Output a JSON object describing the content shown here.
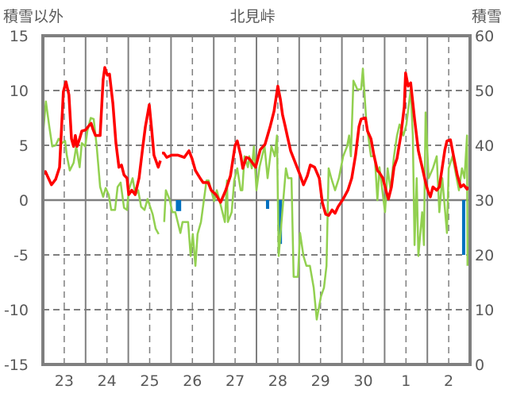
{
  "chart_data": {
    "type": "line",
    "title": "北見峠",
    "ylabel_left": "積雪以外",
    "ylabel_right": "積雪",
    "ylim_left": [
      -15,
      15
    ],
    "ylim_right": [
      0,
      60
    ],
    "yticks_left": [
      "15",
      "10",
      "5",
      "0",
      "-5",
      "-10",
      "-15"
    ],
    "yticks_right": [
      "60",
      "50",
      "40",
      "30",
      "20",
      "10",
      "0"
    ],
    "x_unit": "days from start of day 23",
    "xlim": [
      0,
      10
    ],
    "xtick_labels": [
      "23",
      "24",
      "25",
      "26",
      "27",
      "28",
      "29",
      "30",
      "1",
      "2"
    ],
    "grid": true,
    "colors": {
      "red": "#ff0000",
      "green": "#92d050",
      "blue": "#0070c0",
      "purple": "#7030a0",
      "frame": "#7f7f7f"
    },
    "series": [
      {
        "id": "red",
        "axis": "left",
        "color": "#ff0000",
        "points": [
          [
            0,
            2.3
          ],
          [
            0.06,
            2.6
          ],
          [
            0.2,
            1.4
          ],
          [
            0.3,
            1.9
          ],
          [
            0.39,
            3.0
          ],
          [
            0.48,
            9.9
          ],
          [
            0.54,
            10.8
          ],
          [
            0.61,
            9.6
          ],
          [
            0.67,
            5.6
          ],
          [
            0.72,
            4.9
          ],
          [
            0.76,
            5.9
          ],
          [
            0.8,
            4.9
          ],
          [
            0.86,
            5.6
          ],
          [
            0.91,
            6.3
          ],
          [
            1.0,
            6.4
          ],
          [
            1.08,
            6.8
          ],
          [
            1.13,
            7.0
          ],
          [
            1.17,
            6.5
          ],
          [
            1.23,
            5.9
          ],
          [
            1.34,
            5.9
          ],
          [
            1.41,
            11.0
          ],
          [
            1.45,
            12.1
          ],
          [
            1.51,
            11.4
          ],
          [
            1.56,
            11.5
          ],
          [
            1.64,
            8.8
          ],
          [
            1.71,
            5.2
          ],
          [
            1.78,
            3.0
          ],
          [
            1.84,
            3.2
          ],
          [
            1.9,
            2.3
          ],
          [
            1.97,
            2.0
          ],
          [
            2.01,
            0.5
          ],
          [
            2.08,
            0.9
          ],
          [
            2.16,
            0.5
          ],
          [
            2.25,
            2.0
          ],
          [
            2.34,
            4.9
          ],
          [
            2.4,
            6.7
          ],
          [
            2.49,
            8.7
          ],
          [
            2.55,
            6.3
          ],
          [
            2.6,
            4.1
          ],
          [
            2.7,
            3.0
          ],
          [
            2.75,
            3.6
          ],
          null,
          [
            2.79,
            4.3
          ],
          [
            2.83,
            4.3
          ],
          [
            2.9,
            3.9
          ],
          [
            3.01,
            4.1
          ],
          [
            3.16,
            4.1
          ],
          [
            3.31,
            3.9
          ],
          [
            3.42,
            4.5
          ],
          [
            3.49,
            3.8
          ],
          [
            3.57,
            2.7
          ],
          [
            3.68,
            2.0
          ],
          [
            3.75,
            1.6
          ],
          [
            3.87,
            1.6
          ],
          [
            3.94,
            0.9
          ],
          [
            4.05,
            0.5
          ],
          [
            4.16,
            -0.2
          ],
          [
            4.28,
            0.9
          ],
          [
            4.39,
            2.2
          ],
          [
            4.5,
            5.0
          ],
          [
            4.55,
            5.4
          ],
          [
            4.63,
            4.1
          ],
          [
            4.68,
            2.9
          ],
          [
            4.76,
            3.9
          ],
          [
            4.83,
            3.8
          ],
          [
            4.98,
            3.0
          ],
          [
            5.09,
            4.6
          ],
          [
            5.2,
            5.1
          ],
          [
            5.32,
            6.7
          ],
          [
            5.41,
            8.1
          ],
          [
            5.5,
            10.4
          ],
          [
            5.56,
            9.2
          ],
          [
            5.61,
            7.8
          ],
          [
            5.67,
            6.8
          ],
          [
            5.72,
            5.9
          ],
          [
            5.8,
            4.5
          ],
          [
            5.87,
            3.8
          ],
          [
            5.95,
            3.0
          ],
          [
            6.02,
            2.3
          ],
          [
            6.1,
            1.4
          ],
          [
            6.19,
            2.2
          ],
          [
            6.26,
            3.2
          ],
          [
            6.36,
            3.0
          ],
          [
            6.47,
            2.0
          ],
          [
            6.54,
            -0.2
          ],
          [
            6.62,
            -1.3
          ],
          [
            6.69,
            -1.4
          ],
          [
            6.77,
            -0.9
          ],
          [
            6.84,
            -1.2
          ],
          [
            6.91,
            -0.6
          ],
          [
            7.03,
            0.1
          ],
          [
            7.14,
            0.9
          ],
          [
            7.23,
            2.0
          ],
          [
            7.32,
            4.1
          ],
          [
            7.4,
            6.7
          ],
          [
            7.45,
            7.4
          ],
          [
            7.55,
            7.5
          ],
          [
            7.6,
            6.3
          ],
          [
            7.68,
            5.6
          ],
          [
            7.75,
            4.1
          ],
          [
            7.83,
            2.7
          ],
          [
            7.88,
            2.5
          ],
          [
            7.96,
            2.0
          ],
          [
            8.03,
            0.9
          ],
          [
            8.09,
            0.1
          ],
          [
            8.16,
            1.2
          ],
          [
            8.22,
            3.0
          ],
          [
            8.29,
            3.8
          ],
          [
            8.38,
            5.9
          ],
          [
            8.46,
            8.5
          ],
          [
            8.49,
            11.6
          ],
          [
            8.55,
            10.4
          ],
          [
            8.61,
            10.7
          ],
          [
            8.7,
            7.4
          ],
          [
            8.79,
            4.5
          ],
          [
            8.88,
            3.0
          ],
          [
            8.96,
            1.6
          ],
          [
            9.01,
            0.9
          ],
          [
            9.07,
            0.3
          ],
          [
            9.13,
            1.2
          ],
          [
            9.22,
            0.9
          ],
          [
            9.28,
            1.2
          ],
          [
            9.35,
            3.0
          ],
          [
            9.41,
            4.6
          ],
          [
            9.46,
            5.4
          ],
          [
            9.54,
            5.5
          ],
          [
            9.61,
            4.1
          ],
          [
            9.7,
            2.3
          ],
          [
            9.78,
            1.2
          ],
          [
            9.85,
            1.4
          ],
          [
            9.93,
            1.0
          ],
          [
            9.96,
            1.2
          ]
        ]
      },
      {
        "id": "green",
        "axis": "left",
        "color": "#92d050",
        "points": [
          [
            0,
            5.9
          ],
          [
            0.07,
            9.0
          ],
          [
            0.15,
            6.7
          ],
          [
            0.22,
            4.9
          ],
          [
            0.3,
            5.0
          ],
          [
            0.37,
            5.6
          ],
          [
            0.45,
            5.2
          ],
          [
            0.52,
            5.4
          ],
          [
            0.56,
            4.1
          ],
          [
            0.63,
            2.7
          ],
          [
            0.72,
            3.4
          ],
          [
            0.78,
            4.9
          ],
          [
            0.86,
            3.0
          ],
          [
            0.91,
            5.2
          ],
          [
            0.99,
            4.9
          ],
          [
            1.04,
            6.3
          ],
          [
            1.12,
            7.5
          ],
          [
            1.19,
            7.4
          ],
          [
            1.26,
            4.9
          ],
          [
            1.34,
            1.2
          ],
          [
            1.41,
            0.3
          ],
          [
            1.47,
            1.1
          ],
          [
            1.54,
            0.5
          ],
          [
            1.6,
            -0.9
          ],
          [
            1.69,
            -0.9
          ],
          [
            1.75,
            1.2
          ],
          [
            1.82,
            1.6
          ],
          [
            1.9,
            -0.7
          ],
          [
            1.97,
            -0.9
          ],
          [
            2.01,
            0.9
          ],
          [
            2.1,
            2.0
          ],
          [
            2.17,
            0.5
          ],
          [
            2.23,
            0.9
          ],
          [
            2.3,
            -0.6
          ],
          [
            2.38,
            -0.9
          ],
          [
            2.45,
            0.1
          ],
          [
            2.57,
            -1.3
          ],
          [
            2.64,
            -2.6
          ],
          [
            2.71,
            -3.1
          ],
          null,
          [
            2.84,
            -2.0
          ],
          [
            2.88,
            0.9
          ],
          [
            2.97,
            0
          ],
          [
            3.03,
            -1.1
          ],
          [
            3.1,
            -1.1
          ],
          [
            3.22,
            -3.0
          ],
          [
            3.27,
            -2.0
          ],
          [
            3.4,
            -2.0
          ],
          [
            3.46,
            -5.1
          ],
          [
            3.51,
            -3.1
          ],
          [
            3.57,
            -6.0
          ],
          [
            3.62,
            -3.1
          ],
          [
            3.7,
            -2.0
          ],
          [
            3.83,
            1.8
          ],
          [
            3.88,
            1.8
          ],
          [
            4.01,
            -0.1
          ],
          [
            4.07,
            0.9
          ],
          [
            4.14,
            -0.1
          ],
          [
            4.26,
            -2.0
          ],
          [
            4.31,
            1.8
          ],
          [
            4.33,
            -2.0
          ],
          [
            4.42,
            -1.1
          ],
          [
            4.48,
            1.8
          ],
          [
            4.55,
            2.9
          ],
          [
            4.63,
            0.9
          ],
          [
            4.67,
            0.9
          ],
          [
            4.72,
            4.0
          ],
          [
            4.8,
            3.0
          ],
          [
            4.83,
            4.0
          ],
          [
            4.89,
            2.9
          ],
          [
            4.94,
            4.9
          ],
          [
            5.0,
            0.9
          ],
          [
            5.07,
            3.0
          ],
          [
            5.13,
            4.0
          ],
          [
            5.19,
            4.9
          ],
          [
            5.26,
            2.0
          ],
          [
            5.35,
            4.9
          ],
          [
            5.43,
            4.0
          ],
          [
            5.48,
            5.9
          ],
          [
            5.52,
            -5.1
          ],
          [
            5.63,
            0.1
          ],
          [
            5.69,
            2.9
          ],
          [
            5.74,
            2.0
          ],
          [
            5.82,
            2.0
          ],
          [
            5.87,
            -7.0
          ],
          [
            5.97,
            -7.0
          ],
          [
            6.02,
            -3.0
          ],
          [
            6.1,
            -5.1
          ],
          [
            6.17,
            -6.0
          ],
          [
            6.25,
            -6.0
          ],
          [
            6.34,
            -8.0
          ],
          [
            6.41,
            -10.9
          ],
          [
            6.51,
            -8.8
          ],
          [
            6.58,
            -8.0
          ],
          [
            6.64,
            -6.0
          ],
          [
            6.69,
            2.9
          ],
          [
            6.75,
            2.0
          ],
          [
            6.84,
            0.9
          ],
          [
            6.93,
            2.0
          ],
          [
            7.03,
            4.0
          ],
          [
            7.12,
            4.9
          ],
          [
            7.17,
            5.9
          ],
          [
            7.21,
            4.0
          ],
          [
            7.27,
            10.9
          ],
          [
            7.36,
            10.1
          ],
          [
            7.45,
            10.1
          ],
          [
            7.49,
            12.0
          ],
          [
            7.57,
            7.2
          ],
          [
            7.68,
            4.0
          ],
          [
            7.77,
            4.0
          ],
          [
            7.83,
            0
          ],
          [
            7.88,
            3.0
          ],
          [
            8.01,
            -1.1
          ],
          [
            8.07,
            2.9
          ],
          [
            8.14,
            0.9
          ],
          [
            8.22,
            4.0
          ],
          [
            8.29,
            5.9
          ],
          [
            8.35,
            6.9
          ],
          [
            8.44,
            5.9
          ],
          [
            8.51,
            6.9
          ],
          [
            8.61,
            10.1
          ],
          [
            8.66,
            5.9
          ],
          [
            8.7,
            -4.1
          ],
          [
            8.75,
            2.0
          ],
          [
            8.79,
            -5.1
          ],
          [
            8.88,
            -1.1
          ],
          [
            8.92,
            -4.1
          ],
          [
            8.96,
            8.0
          ],
          [
            9.03,
            2.0
          ],
          [
            9.13,
            2.9
          ],
          [
            9.22,
            4.0
          ],
          [
            9.28,
            -1.1
          ],
          [
            9.35,
            2.0
          ],
          [
            9.46,
            -3.0
          ],
          [
            9.5,
            2.9
          ],
          [
            9.59,
            4.0
          ],
          [
            9.74,
            0.9
          ],
          [
            9.81,
            2.9
          ],
          [
            9.87,
            2.0
          ],
          [
            9.93,
            5.9
          ],
          [
            9.94,
            -6.0
          ]
        ]
      },
      {
        "id": "purple",
        "axis": "right",
        "color": "#7030a0",
        "points": [
          [
            0,
            0
          ],
          [
            10,
            0
          ]
        ]
      }
    ],
    "bars": {
      "axis": "left",
      "color": "#0070c0",
      "points": [
        [
          3.15,
          -1.0
        ],
        [
          3.2,
          -1.0
        ],
        [
          5.26,
          -0.8
        ],
        [
          5.56,
          -4.0
        ],
        [
          9.85,
          -5.0
        ]
      ]
    }
  }
}
